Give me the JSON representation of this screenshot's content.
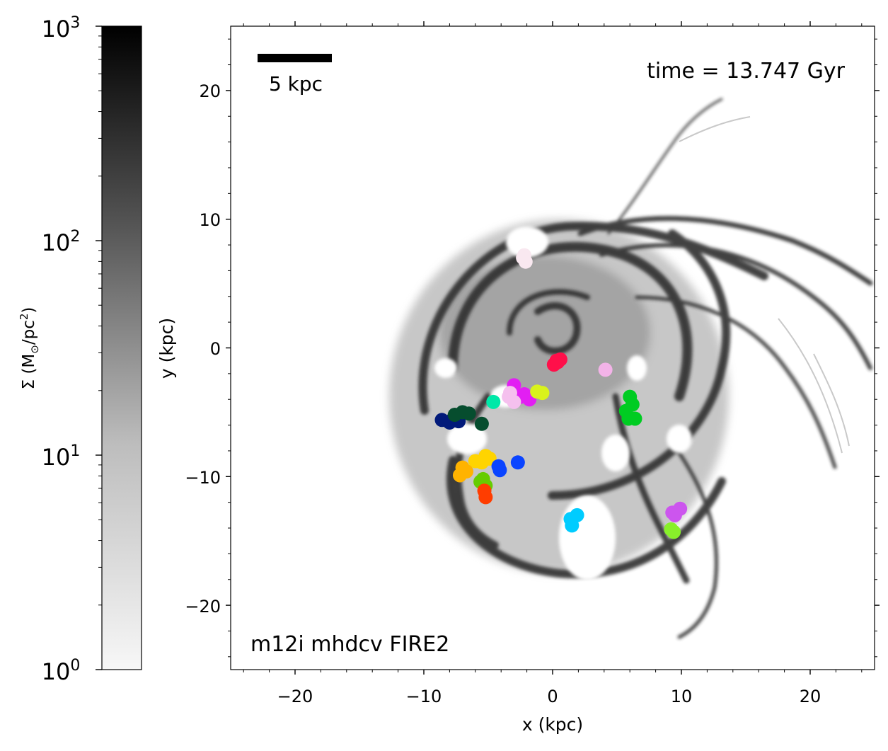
{
  "colorbar": {
    "label_prefix": "Σ (M",
    "label_sun": "⊙",
    "label_mid": "/pc",
    "label_exp": "2",
    "label_suffix": ")",
    "scale": "log",
    "range": [
      1,
      1000
    ],
    "tick_labels": [
      {
        "base": "10",
        "exp": "0",
        "value": 1
      },
      {
        "base": "10",
        "exp": "1",
        "value": 10
      },
      {
        "base": "10",
        "exp": "2",
        "value": 100
      },
      {
        "base": "10",
        "exp": "3",
        "value": 1000
      }
    ],
    "colormap": "greys"
  },
  "chart_data": {
    "type": "scatter",
    "xlabel": "x (kpc)",
    "ylabel": "y (kpc)",
    "xlim": [
      -25,
      25
    ],
    "ylim": [
      -25,
      25
    ],
    "x_ticks": [
      -20,
      -10,
      0,
      10,
      20
    ],
    "y_ticks": [
      -20,
      -10,
      0,
      10,
      20
    ],
    "x_tick_labels": [
      "−20",
      "−10",
      "0",
      "10",
      "20"
    ],
    "y_tick_labels": [
      "−20",
      "−10",
      "0",
      "10",
      "20"
    ],
    "annotations": {
      "time": "time = 13.747 Gyr",
      "scalebar_label": "5 kpc",
      "scalebar_length_kpc": 5,
      "run": "m12i mhdcv FIRE2"
    },
    "background": "gas surface density map (face-on spiral galaxy)",
    "clusters": [
      {
        "color": "#f9e8f0",
        "points": [
          [
            -2.2,
            7.2
          ],
          [
            -2.1,
            6.7
          ],
          [
            -2.3,
            7.0
          ]
        ]
      },
      {
        "color": "#ff0f4a",
        "points": [
          [
            0.3,
            -1.0
          ],
          [
            0.6,
            -0.9
          ],
          [
            0.1,
            -1.3
          ],
          [
            0.4,
            -1.1
          ]
        ]
      },
      {
        "color": "#f3b3e8",
        "points": [
          [
            4.1,
            -1.7
          ]
        ]
      },
      {
        "color": "#e21ff3",
        "points": [
          [
            -3.0,
            -2.9
          ],
          [
            -2.2,
            -3.6
          ],
          [
            -1.8,
            -4.0
          ],
          [
            -2.5,
            -3.8
          ]
        ]
      },
      {
        "color": "#d9f21c",
        "points": [
          [
            -1.2,
            -3.4
          ],
          [
            -0.8,
            -3.5
          ]
        ]
      },
      {
        "color": "#f5c0ee",
        "points": [
          [
            -3.3,
            -3.5
          ],
          [
            -3.0,
            -4.2
          ],
          [
            -3.4,
            -3.8
          ]
        ]
      },
      {
        "color": "#00e8a8",
        "points": [
          [
            -4.6,
            -4.2
          ]
        ]
      },
      {
        "color": "#00cc22",
        "points": [
          [
            6.0,
            -3.8
          ],
          [
            6.2,
            -4.4
          ],
          [
            5.7,
            -4.9
          ],
          [
            6.4,
            -5.5
          ],
          [
            5.9,
            -5.5
          ]
        ]
      },
      {
        "color": "#021a7a",
        "points": [
          [
            -8.6,
            -5.6
          ],
          [
            -8.0,
            -5.8
          ],
          [
            -7.3,
            -5.7
          ],
          [
            -7.8,
            -5.6
          ]
        ]
      },
      {
        "color": "#064d2e",
        "points": [
          [
            -7.6,
            -5.2
          ],
          [
            -7.0,
            -5.0
          ],
          [
            -6.5,
            -5.1
          ],
          [
            -5.5,
            -5.9
          ]
        ]
      },
      {
        "color": "#ffd400",
        "points": [
          [
            -5.2,
            -8.4
          ],
          [
            -4.9,
            -8.6
          ],
          [
            -5.5,
            -8.9
          ],
          [
            -6.0,
            -8.8
          ]
        ]
      },
      {
        "color": "#ffb300",
        "points": [
          [
            -7.0,
            -9.3
          ],
          [
            -7.2,
            -9.9
          ],
          [
            -6.7,
            -9.6
          ]
        ]
      },
      {
        "color": "#0a44ff",
        "points": [
          [
            -4.2,
            -9.2
          ],
          [
            -4.1,
            -9.5
          ],
          [
            -2.7,
            -8.9
          ]
        ]
      },
      {
        "color": "#66cc00",
        "points": [
          [
            -5.6,
            -10.4
          ],
          [
            -5.2,
            -10.7
          ],
          [
            -5.4,
            -10.2
          ]
        ]
      },
      {
        "color": "#ff3d00",
        "points": [
          [
            -5.3,
            -11.1
          ],
          [
            -5.2,
            -11.6
          ]
        ]
      },
      {
        "color": "#00ccff",
        "points": [
          [
            1.9,
            -13.0
          ],
          [
            1.4,
            -13.3
          ],
          [
            1.5,
            -13.8
          ]
        ]
      },
      {
        "color": "#cc55ee",
        "points": [
          [
            9.3,
            -12.8
          ],
          [
            9.9,
            -12.5
          ],
          [
            9.5,
            -13.0
          ]
        ]
      },
      {
        "color": "#88f02a",
        "points": [
          [
            9.2,
            -14.1
          ],
          [
            9.4,
            -14.3
          ]
        ]
      }
    ]
  }
}
